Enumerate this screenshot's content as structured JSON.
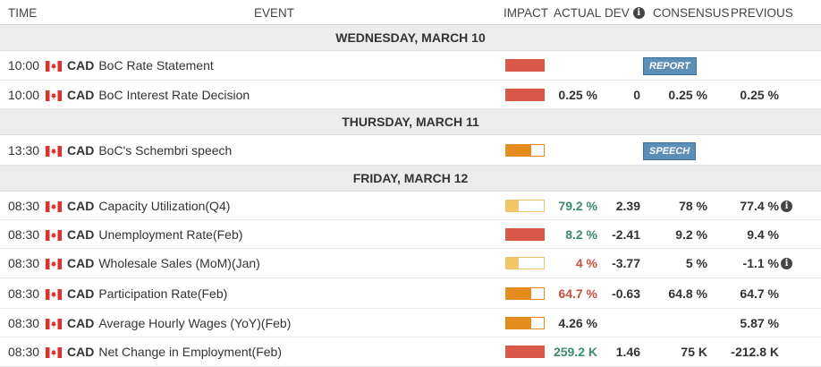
{
  "header": {
    "time": "TIME",
    "event": "EVENT",
    "impact": "IMPACT",
    "actual": "ACTUAL",
    "dev": "DEV",
    "consensus": "CONSENSUS",
    "previous": "PREVIOUS"
  },
  "days": [
    {
      "date": "WEDNESDAY, MARCH 10",
      "events": [
        {
          "time": "10:00",
          "currency": "CAD",
          "name": "BoC Rate Statement",
          "impact": "high",
          "tag": "REPORT"
        },
        {
          "time": "10:00",
          "currency": "CAD",
          "name": "BoC Interest Rate Decision",
          "impact": "high",
          "actual": "0.25 %",
          "dev": "0",
          "consensus": "0.25 %",
          "previous": "0.25 %"
        }
      ]
    },
    {
      "date": "THURSDAY, MARCH 11",
      "events": [
        {
          "time": "13:30",
          "currency": "CAD",
          "name": "BoC's Schembri speech",
          "impact": "medium",
          "tag": "SPEECH"
        }
      ]
    },
    {
      "date": "FRIDAY, MARCH 12",
      "events": [
        {
          "time": "08:30",
          "currency": "CAD",
          "name": "Capacity Utilization(Q4)",
          "impact": "low",
          "actual": "79.2 %",
          "actual_trend": "positive",
          "dev": "2.39",
          "consensus": "78 %",
          "previous": "77.4 %",
          "previous_info": true
        },
        {
          "time": "08:30",
          "currency": "CAD",
          "name": "Unemployment Rate(Feb)",
          "impact": "high",
          "actual": "8.2 %",
          "actual_trend": "positive",
          "dev": "-2.41",
          "consensus": "9.2 %",
          "previous": "9.4 %"
        },
        {
          "time": "08:30",
          "currency": "CAD",
          "name": "Wholesale Sales (MoM)(Jan)",
          "impact": "low",
          "actual": "4 %",
          "actual_trend": "negative",
          "dev": "-3.77",
          "consensus": "5 %",
          "previous": "-1.1 %",
          "previous_info": true
        },
        {
          "time": "08:30",
          "currency": "CAD",
          "name": "Participation Rate(Feb)",
          "impact": "medium",
          "actual": "64.7 %",
          "actual_trend": "negative",
          "dev": "-0.63",
          "consensus": "64.8 %",
          "previous": "64.7 %"
        },
        {
          "time": "08:30",
          "currency": "CAD",
          "name": "Average Hourly Wages (YoY)(Feb)",
          "impact": "medium",
          "actual": "4.26 %",
          "actual_trend": "neutral",
          "previous": "5.87 %"
        },
        {
          "time": "08:30",
          "currency": "CAD",
          "name": "Net Change in Employment(Feb)",
          "impact": "high",
          "actual": "259.2 K",
          "actual_trend": "positive",
          "dev": "1.46",
          "consensus": "75 K",
          "previous": "-212.8 K"
        }
      ]
    }
  ],
  "colors": {
    "positive": "#3e8a6e",
    "negative": "#c9503f",
    "high_impact": "#d9584a",
    "medium_impact": "#e58c1f",
    "low_impact": "#f3c566",
    "tag": "#5c8fb8"
  },
  "icons": {
    "flag": "canada-flag-icon",
    "info": "info-icon"
  }
}
